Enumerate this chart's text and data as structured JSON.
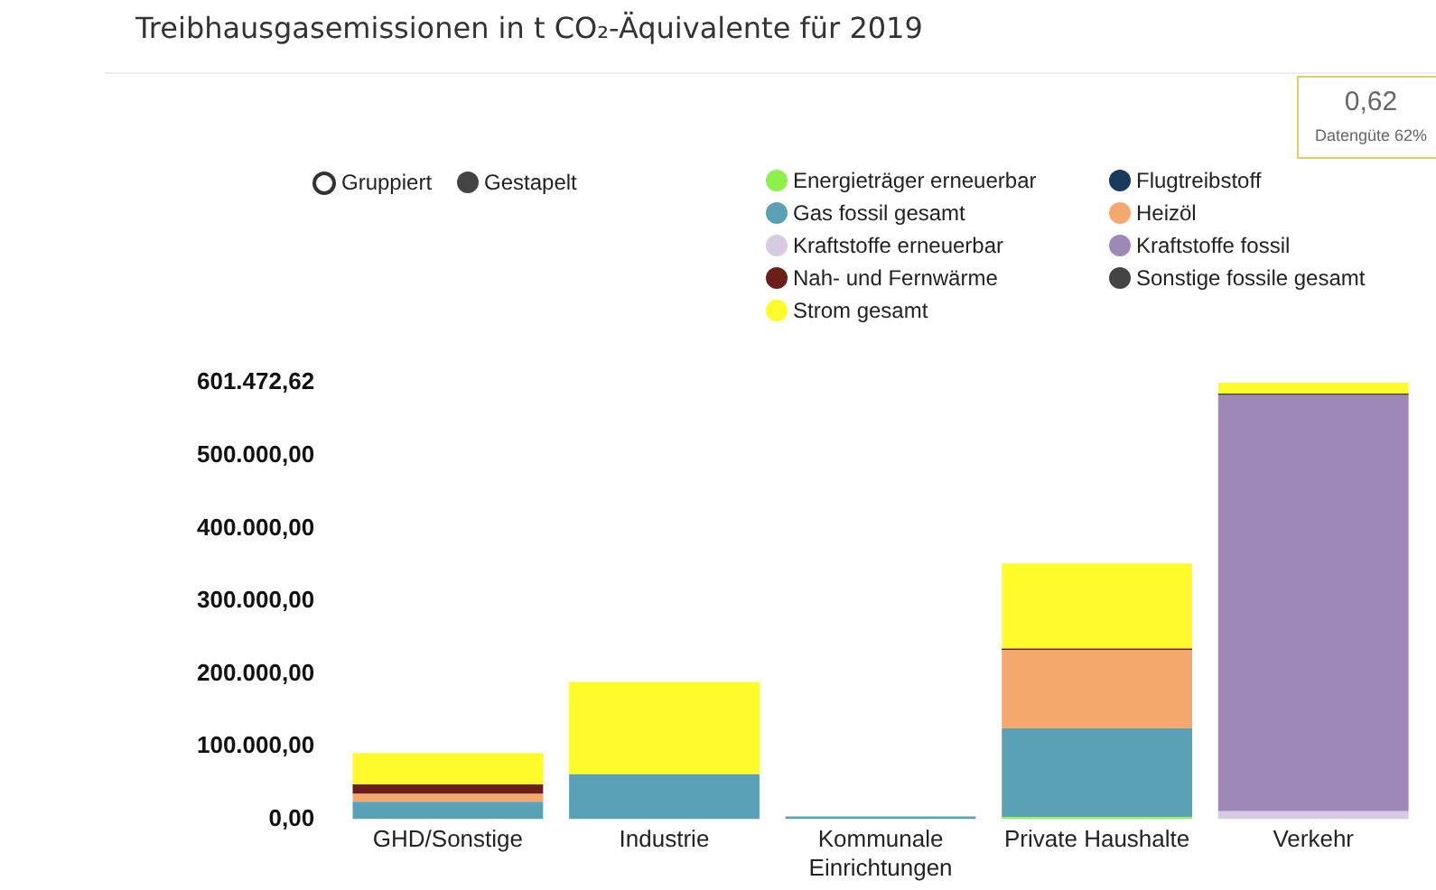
{
  "chart_data": {
    "type": "bar",
    "title": "Treibhausgasemissionen in t CO₂-Äquivalente für 2019",
    "stacked": true,
    "legend": "top right",
    "grid": false,
    "categories": [
      "GHD/Sonstige",
      "Industrie",
      "Kommunale Einrichtungen",
      "Private Haushalte",
      "Verkehr"
    ],
    "ylim": [
      0,
      601472.62
    ],
    "yticks": [
      {
        "value": 0,
        "label": "0,00"
      },
      {
        "value": 100000,
        "label": "100.000,00"
      },
      {
        "value": 200000,
        "label": "200.000,00"
      },
      {
        "value": 300000,
        "label": "300.000,00"
      },
      {
        "value": 400000,
        "label": "400.000,00"
      },
      {
        "value": 500000,
        "label": "500.000,00"
      },
      {
        "value": 601472.62,
        "label": "601.472,62"
      }
    ],
    "annotations": [
      "Gruppiert",
      "Gestapelt",
      "0,62",
      "Datengüte 62%"
    ],
    "series": [
      {
        "name": "Energieträger erneuerbar",
        "color": "#8ef04a",
        "values": [
          0,
          0,
          null,
          3000,
          0
        ]
      },
      {
        "name": "Flugtreibstoff",
        "color": "#173a5e",
        "values": [
          0,
          0,
          0,
          0,
          0
        ]
      },
      {
        "name": "Gas fossil gesamt",
        "color": "#5ba1b5",
        "values": [
          24000,
          62000,
          4000,
          122000,
          0
        ]
      },
      {
        "name": "Heizöl",
        "color": "#f5a86e",
        "values": [
          11000,
          0,
          0,
          108000,
          0
        ]
      },
      {
        "name": "Kraftstoffe erneuerbar",
        "color": "#d6cbe3",
        "values": [
          0,
          0,
          0,
          0,
          11000
        ]
      },
      {
        "name": "Kraftstoffe fossil",
        "color": "#9e88b8",
        "values": [
          0,
          0,
          0,
          0,
          573000
        ]
      },
      {
        "name": "Nah- und Fernwärme",
        "color": "#6b1f1a",
        "values": [
          13000,
          0,
          0,
          2000,
          0
        ]
      },
      {
        "name": "Sonstige fossile gesamt",
        "color": "#444444",
        "values": [
          0,
          0,
          0,
          0,
          2000
        ]
      },
      {
        "name": "Strom gesamt",
        "color": "#fffb2a",
        "values": [
          43000,
          127000,
          0,
          117000,
          15000
        ]
      }
    ]
  }
}
